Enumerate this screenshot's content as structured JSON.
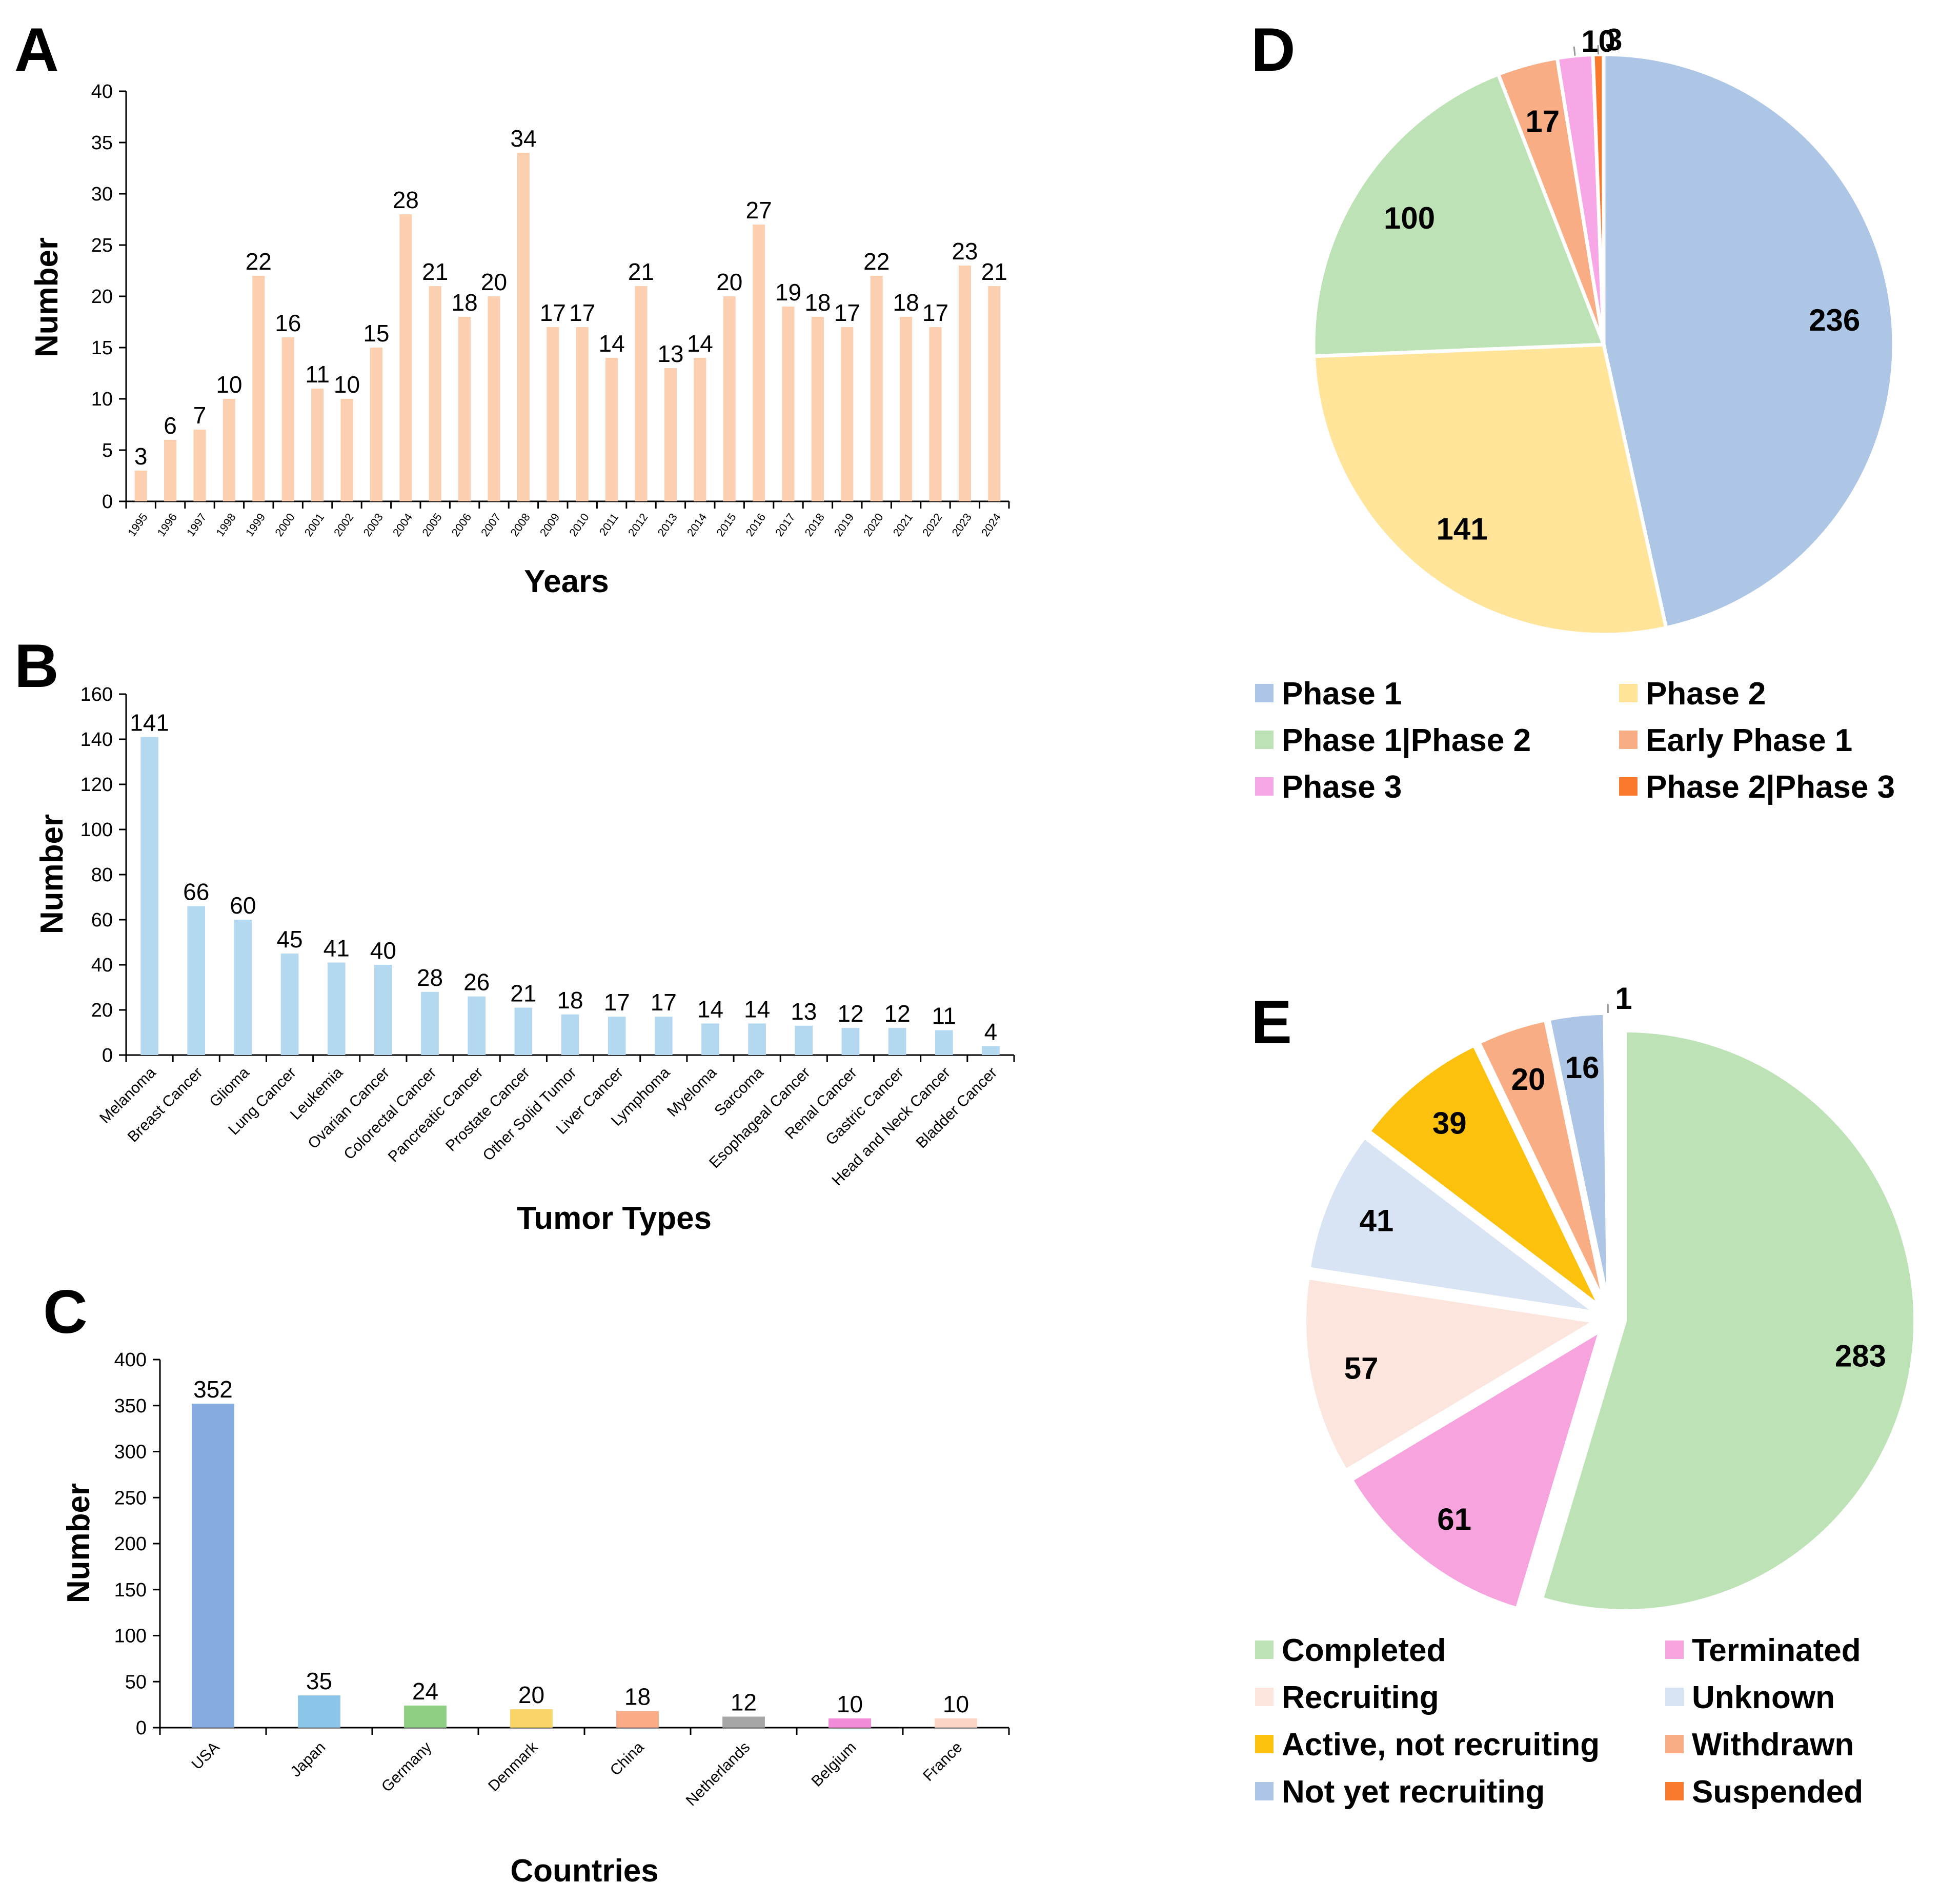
{
  "chart_data": [
    {
      "panel": "A",
      "type": "bar",
      "title": "",
      "xlabel": "Years",
      "ylabel": "Number",
      "ylim": [
        0,
        40
      ],
      "yticks": [
        0,
        5,
        10,
        15,
        20,
        25,
        30,
        35,
        40
      ],
      "categories": [
        "1995",
        "1996",
        "1997",
        "1998",
        "1999",
        "2000",
        "2001",
        "2002",
        "2003",
        "2004",
        "2005",
        "2006",
        "2007",
        "2008",
        "2009",
        "2010",
        "2011",
        "2012",
        "2013",
        "2014",
        "2015",
        "2016",
        "2017",
        "2018",
        "2019",
        "2020",
        "2021",
        "2022",
        "2023",
        "2024"
      ],
      "values": [
        3,
        6,
        7,
        10,
        22,
        16,
        11,
        10,
        15,
        28,
        21,
        18,
        20,
        34,
        17,
        17,
        14,
        21,
        13,
        14,
        20,
        27,
        19,
        18,
        17,
        22,
        18,
        17,
        23,
        21
      ],
      "color": "#FCCFB0"
    },
    {
      "panel": "B",
      "type": "bar",
      "title": "",
      "xlabel": "Tumor Types",
      "ylabel": "Number",
      "ylim": [
        0,
        160
      ],
      "yticks": [
        0,
        20,
        40,
        60,
        80,
        100,
        120,
        140,
        160
      ],
      "categories": [
        "Melanoma",
        "Breast Cancer",
        "Glioma",
        "Lung Cancer",
        "Leukemia",
        "Ovarian Cancer",
        "Colorectal Cancer",
        "Pancreatic Cancer",
        "Prostate Cancer",
        "Other Solid Tumor",
        "Liver Cancer",
        "Lymphoma",
        "Myeloma",
        "Sarcoma",
        "Esophageal Cancer",
        "Renal Cancer",
        "Gastric Cancer",
        "Head and Neck Cancer",
        "Bladder Cancer"
      ],
      "values": [
        141,
        66,
        60,
        45,
        41,
        40,
        28,
        26,
        21,
        18,
        17,
        17,
        14,
        14,
        13,
        12,
        12,
        11,
        4
      ],
      "color": "#B4D8F0"
    },
    {
      "panel": "C",
      "type": "bar",
      "title": "",
      "xlabel": "Countries",
      "ylabel": "Number",
      "ylim": [
        0,
        400
      ],
      "yticks": [
        0,
        50,
        100,
        150,
        200,
        250,
        300,
        350,
        400
      ],
      "categories": [
        "USA",
        "Japan",
        "Germany",
        "Denmark",
        "China",
        "Netherlands",
        "Belgium",
        "France"
      ],
      "values": [
        352,
        35,
        24,
        20,
        18,
        12,
        10,
        10
      ],
      "colors": [
        "#84AADF",
        "#8BC6E8",
        "#8ECF84",
        "#F9D568",
        "#F9AC85",
        "#A6A6A6",
        "#F28BD8",
        "#FCD5C6"
      ]
    },
    {
      "panel": "D",
      "type": "pie",
      "title": "",
      "labels": [
        "Phase 1",
        "Phase 2",
        "Phase 1|Phase 2",
        "Early Phase 1",
        "Phase 3",
        "Phase 2|Phase 3"
      ],
      "values": [
        236,
        141,
        100,
        17,
        10,
        3
      ],
      "colors": [
        "#ADC6E6",
        "#FFE49A",
        "#BCE2B5",
        "#F9AD85",
        "#F7A7E6",
        "#F97A2D"
      ],
      "legend": "bottom"
    },
    {
      "panel": "E",
      "type": "pie",
      "title": "",
      "exploded": true,
      "labels": [
        "Completed",
        "Terminated",
        "Recruiting",
        "Unknown",
        "Active, not recruiting",
        "Withdrawn",
        "Not yet recruiting",
        "Suspended"
      ],
      "values": [
        283,
        61,
        57,
        41,
        39,
        20,
        16,
        1
      ],
      "colors": [
        "#BCE2B5",
        "#F7A3DE",
        "#FCE5DC",
        "#D8E4F4",
        "#FCC10D",
        "#F9AD85",
        "#ADC6E6",
        "#F97A2D"
      ],
      "legend": "bottom"
    }
  ]
}
